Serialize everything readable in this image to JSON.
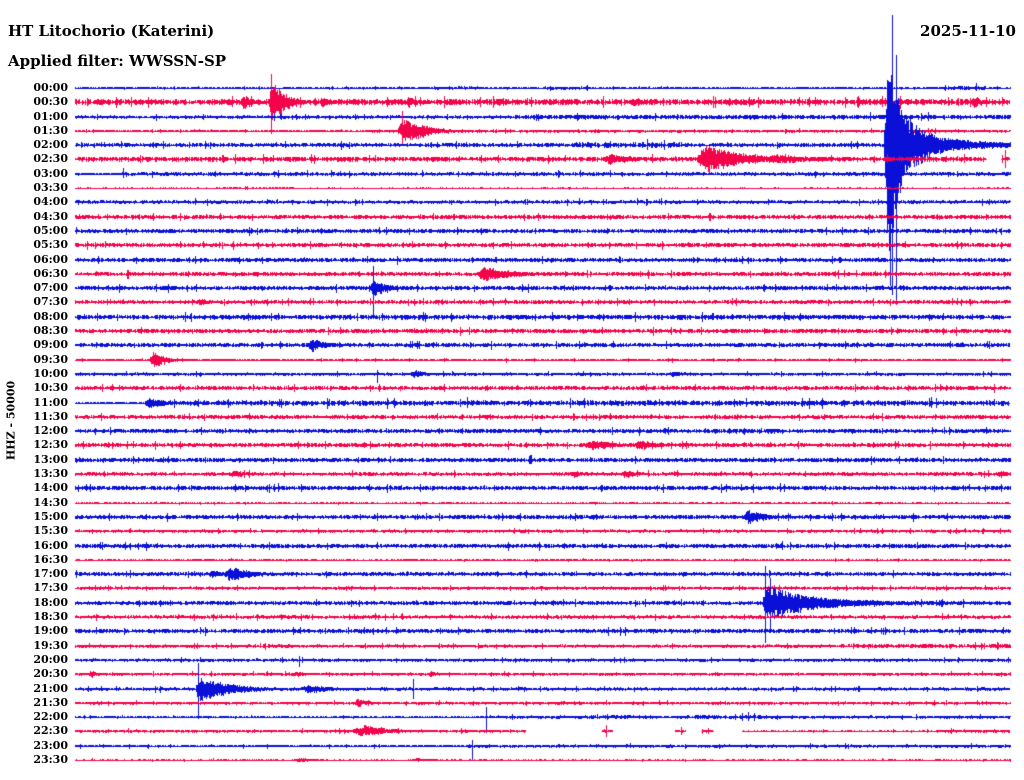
{
  "header": {
    "station_title": "HT Litochorio (Katerini)",
    "filter_label": "Applied filter: WWSSN-SP",
    "date": "2025-11-10"
  },
  "axis": {
    "channel_label": "HHZ - 50000"
  },
  "colors": {
    "blue": "#0a10d8",
    "red": "#f5034a",
    "text": "#000000",
    "background": "#ffffff"
  },
  "chart_data": {
    "type": "helicorder",
    "title": "HT Litochorio (Katerini)",
    "subtitle": "Applied filter: WWSSN-SP",
    "date": "2025-11-10",
    "channel": "HHZ - 50000",
    "minutes_per_row": 30,
    "rows": [
      {
        "label": "00:00",
        "color": "blue",
        "noise": 0.9,
        "segments": [
          {
            "f": 11.5,
            "to": 13,
            "amp": 1.5
          },
          {
            "f": 15,
            "to": 16.5,
            "amp": 1.5
          },
          {
            "f": 27.8,
            "to": 29.2,
            "amp": 2
          }
        ],
        "spikes": [
          {
            "t": 28.9,
            "up": 5,
            "dn": 3
          }
        ]
      },
      {
        "label": "00:30",
        "color": "red",
        "noise": 2.8,
        "events": [
          {
            "t": 5.4,
            "amp": 8,
            "a": 0.12,
            "d": 0.3
          },
          {
            "t": 6.3,
            "amp": 24,
            "a": 0.1,
            "d": 0.45
          },
          {
            "t": 7.9,
            "amp": 5,
            "a": 0.1,
            "d": 0.5
          },
          {
            "t": 10.7,
            "amp": 6,
            "a": 0.12,
            "d": 0.35
          },
          {
            "t": 13.6,
            "amp": 5,
            "a": 0.12,
            "d": 0.35
          },
          {
            "t": 17.9,
            "amp": 4,
            "a": 0.2,
            "d": 0.5
          },
          {
            "t": 28.85,
            "amp": 6,
            "a": 0.15,
            "d": 0.35
          }
        ],
        "spikes": [
          {
            "t": 6.3,
            "up": 28,
            "dn": 32
          }
        ]
      },
      {
        "label": "01:00",
        "color": "blue",
        "noise": 1.5,
        "segments": [
          {
            "f": 14,
            "to": 30,
            "amp": 2.1
          }
        ],
        "spikes": [
          {
            "t": 6.4,
            "up": 4,
            "dn": 4
          }
        ]
      },
      {
        "label": "01:30",
        "color": "red",
        "noise": 1.3,
        "segments": [
          {
            "f": 0,
            "to": 9.5,
            "amp": 1.0
          }
        ],
        "events": [
          {
            "t": 10.55,
            "amp": 13,
            "a": 0.25,
            "d": 0.8
          }
        ],
        "spikes": [
          {
            "t": 10.5,
            "up": 20,
            "dn": 15
          }
        ]
      },
      {
        "label": "02:00",
        "color": "blue",
        "noise": 1.9,
        "segments": [
          {
            "f": 16,
            "to": 19.5,
            "amp": 2.6
          }
        ],
        "events": [
          {
            "t": 26.15,
            "amp": 130,
            "a": 0.22,
            "d": 0.28,
            "asym": 1.2
          },
          {
            "t": 26.3,
            "amp": 45,
            "a": 0.3,
            "d": 0.9,
            "asym": 1.1
          },
          {
            "t": 26.5,
            "amp": 12,
            "a": 0.2,
            "d": 2.5
          }
        ],
        "spikes": [
          {
            "t": 26.22,
            "up": 130,
            "dn": 150
          },
          {
            "t": 26.35,
            "up": 90,
            "dn": 155
          },
          {
            "t": 26.05,
            "up": 60,
            "dn": 70
          }
        ]
      },
      {
        "label": "02:30",
        "color": "red",
        "noise": 2.2,
        "events": [
          {
            "t": 17.15,
            "amp": 6,
            "a": 0.3,
            "d": 0.9
          },
          {
            "t": 20.2,
            "amp": 15,
            "a": 0.3,
            "d": 1.3
          },
          {
            "t": 22.5,
            "amp": 5,
            "a": 0.5,
            "d": 1.5
          }
        ],
        "spikes": [
          {
            "t": 29.85,
            "up": 9,
            "dn": 9
          }
        ],
        "gaps": [
          [
            29.25,
            29.72
          ]
        ]
      },
      {
        "label": "03:00",
        "color": "blue",
        "noise": 1.7,
        "segments": [
          {
            "f": 0,
            "to": 1.5,
            "amp": 1.0
          }
        ],
        "spikes": [
          {
            "t": 1.55,
            "up": 6,
            "dn": 4
          },
          {
            "t": 6.5,
            "up": 4,
            "dn": 4
          }
        ]
      },
      {
        "label": "03:30",
        "color": "red",
        "noise": 0.55,
        "den": 0.75,
        "segments": [
          {
            "f": 4.5,
            "to": 7,
            "amp": 0.9
          }
        ]
      },
      {
        "label": "04:00",
        "color": "blue",
        "noise": 1.6
      },
      {
        "label": "04:30",
        "color": "red",
        "noise": 1.9
      },
      {
        "label": "05:00",
        "color": "blue",
        "noise": 1.9
      },
      {
        "label": "05:30",
        "color": "red",
        "noise": 1.9
      },
      {
        "label": "06:00",
        "color": "blue",
        "noise": 1.9,
        "events": [
          {
            "t": 7.3,
            "amp": 3,
            "a": 0.2,
            "d": 0.4
          }
        ]
      },
      {
        "label": "06:30",
        "color": "red",
        "noise": 1.9,
        "events": [
          {
            "t": 13.05,
            "amp": 8,
            "a": 0.15,
            "d": 1.1
          }
        ]
      },
      {
        "label": "07:00",
        "color": "blue",
        "noise": 1.9,
        "events": [
          {
            "t": 2.9,
            "amp": 3,
            "a": 0.2,
            "d": 0.4
          },
          {
            "t": 9.55,
            "amp": 11,
            "a": 0.1,
            "d": 0.45
          }
        ],
        "spikes": [
          {
            "t": 9.55,
            "up": 22,
            "dn": 27
          }
        ]
      },
      {
        "label": "07:30",
        "color": "red",
        "noise": 1.8,
        "events": [
          {
            "t": 4.0,
            "amp": 4,
            "a": 0.15,
            "d": 0.4
          }
        ]
      },
      {
        "label": "08:00",
        "color": "blue",
        "noise": 2.2
      },
      {
        "label": "08:30",
        "color": "red",
        "noise": 2.0
      },
      {
        "label": "09:00",
        "color": "blue",
        "noise": 1.9,
        "events": [
          {
            "t": 7.6,
            "amp": 7,
            "a": 0.2,
            "d": 0.5
          }
        ]
      },
      {
        "label": "09:30",
        "color": "red",
        "noise": 1.1,
        "events": [
          {
            "t": 2.5,
            "amp": 8,
            "a": 0.15,
            "d": 0.5
          }
        ]
      },
      {
        "label": "10:00",
        "color": "blue",
        "noise": 1.4,
        "events": [
          {
            "t": 10.9,
            "amp": 4,
            "a": 0.3,
            "d": 0.5
          },
          {
            "t": 19.2,
            "amp": 3,
            "a": 0.3,
            "d": 0.6
          }
        ],
        "spikes": [
          {
            "t": 9.7,
            "up": 4,
            "dn": 9
          }
        ]
      },
      {
        "label": "10:30",
        "color": "red",
        "noise": 1.9
      },
      {
        "label": "11:00",
        "color": "blue",
        "noise": 2.4,
        "segments": [
          {
            "f": 0,
            "to": 2.25,
            "amp": 0.9
          }
        ],
        "events": [
          {
            "t": 2.35,
            "amp": 6,
            "a": 0.1,
            "d": 0.6
          }
        ]
      },
      {
        "label": "11:30",
        "color": "red",
        "noise": 1.8
      },
      {
        "label": "12:00",
        "color": "blue",
        "noise": 1.9,
        "segments": [
          {
            "f": 20,
            "to": 23,
            "amp": 2.4
          }
        ]
      },
      {
        "label": "12:30",
        "color": "red",
        "noise": 1.9,
        "events": [
          {
            "t": 16.6,
            "amp": 5,
            "a": 0.4,
            "d": 1.0
          },
          {
            "t": 18.1,
            "amp": 5,
            "a": 0.3,
            "d": 0.8
          }
        ]
      },
      {
        "label": "13:00",
        "color": "blue",
        "noise": 2.0
      },
      {
        "label": "13:30",
        "color": "red",
        "noise": 1.7,
        "events": [
          {
            "t": 5.1,
            "amp": 4,
            "a": 0.2,
            "d": 0.5
          },
          {
            "t": 16.0,
            "amp": 4,
            "a": 0.2,
            "d": 0.5
          },
          {
            "t": 17.7,
            "amp": 4,
            "a": 0.2,
            "d": 0.4
          },
          {
            "t": 29.7,
            "amp": 4,
            "a": 0.2,
            "d": 0.3
          }
        ]
      },
      {
        "label": "14:00",
        "color": "blue",
        "noise": 2.0
      },
      {
        "label": "14:30",
        "color": "red",
        "noise": 0.8,
        "den": 0.8
      },
      {
        "label": "15:00",
        "color": "blue",
        "noise": 1.9,
        "events": [
          {
            "t": 21.6,
            "amp": 8,
            "a": 0.2,
            "d": 0.6
          }
        ]
      },
      {
        "label": "15:30",
        "color": "red",
        "noise": 1.4
      },
      {
        "label": "16:00",
        "color": "blue",
        "noise": 2.0
      },
      {
        "label": "16:30",
        "color": "red",
        "noise": 0.8,
        "den": 0.85
      },
      {
        "label": "17:00",
        "color": "blue",
        "noise": 1.8,
        "events": [
          {
            "t": 4.4,
            "amp": 4,
            "a": 0.2,
            "d": 0.4
          },
          {
            "t": 4.95,
            "amp": 8,
            "a": 0.2,
            "d": 0.8
          }
        ]
      },
      {
        "label": "17:30",
        "color": "red",
        "noise": 1.4
      },
      {
        "label": "18:00",
        "color": "blue",
        "noise": 1.9,
        "events": [
          {
            "t": 22.15,
            "amp": 19,
            "a": 0.12,
            "d": 1.5
          },
          {
            "t": 23.5,
            "amp": 6,
            "a": 0.5,
            "d": 3.0
          }
        ],
        "spikes": [
          {
            "t": 22.15,
            "up": 37,
            "dn": 40
          },
          {
            "t": 22.3,
            "up": 25,
            "dn": 30
          }
        ]
      },
      {
        "label": "18:30",
        "color": "red",
        "noise": 1.6
      },
      {
        "label": "19:00",
        "color": "blue",
        "noise": 1.9
      },
      {
        "label": "19:30",
        "color": "red",
        "noise": 1.4,
        "segments": [
          {
            "f": 5.5,
            "to": 7,
            "amp": 1.8
          },
          {
            "f": 24.5,
            "to": 30,
            "amp": 2.0
          }
        ]
      },
      {
        "label": "20:00",
        "color": "blue",
        "noise": 1.4,
        "spikes": [
          {
            "t": 7.2,
            "up": 4,
            "dn": 7
          }
        ]
      },
      {
        "label": "20:30",
        "color": "red",
        "noise": 1.3,
        "events": [
          {
            "t": 0.5,
            "amp": 4,
            "a": 0.1,
            "d": 0.3
          },
          {
            "t": 7.1,
            "amp": 3,
            "a": 0.2,
            "d": 0.4
          },
          {
            "t": 11.4,
            "amp": 3,
            "a": 0.2,
            "d": 0.4
          }
        ]
      },
      {
        "label": "21:00",
        "color": "blue",
        "noise": 1.5,
        "events": [
          {
            "t": 3.95,
            "amp": 13,
            "a": 0.1,
            "d": 1.1
          },
          {
            "t": 7.45,
            "amp": 5,
            "a": 0.25,
            "d": 0.8
          }
        ],
        "spikes": [
          {
            "t": 3.95,
            "up": 26,
            "dn": 30
          },
          {
            "t": 10.85,
            "up": 10,
            "dn": 10
          }
        ]
      },
      {
        "label": "21:30",
        "color": "red",
        "noise": 1.3,
        "events": [
          {
            "t": 9.05,
            "amp": 5,
            "a": 0.12,
            "d": 0.4
          }
        ]
      },
      {
        "label": "22:00",
        "color": "blue",
        "noise": 0.8,
        "segments": [
          {
            "f": 13.5,
            "to": 16.5,
            "amp": 1.4
          },
          {
            "f": 16.5,
            "to": 18.3,
            "amp": 2.0
          },
          {
            "f": 18.3,
            "to": 19.8,
            "amp": 1.4
          },
          {
            "f": 19.8,
            "to": 22,
            "amp": 2.0
          },
          {
            "f": 22,
            "to": 30,
            "amp": 1.4
          }
        ],
        "spikes": [
          {
            "t": 13.2,
            "up": 10,
            "dn": 16
          }
        ]
      },
      {
        "label": "22:30",
        "color": "red",
        "noise": 1.3,
        "segments": [
          {
            "f": 21.4,
            "to": 27.6,
            "amp": 0.9,
            "den": 0.55
          },
          {
            "f": 27.6,
            "to": 30,
            "amp": 1.5
          }
        ],
        "events": [
          {
            "t": 9.3,
            "amp": 6,
            "a": 0.6,
            "d": 1.0
          }
        ],
        "spikes": [
          {
            "t": 17.05,
            "up": 6,
            "dn": 6
          },
          {
            "t": 19.45,
            "up": 4,
            "dn": 4
          },
          {
            "t": 20.3,
            "up": 3,
            "dn": 3
          }
        ],
        "gaps": [
          [
            14.45,
            16.9
          ],
          [
            17.25,
            19.25
          ],
          [
            19.6,
            20.1
          ],
          [
            20.5,
            21.4
          ]
        ]
      },
      {
        "label": "23:00",
        "color": "blue",
        "noise": 1.4,
        "segments": [
          {
            "f": 0,
            "to": 12.6,
            "amp": 1.1
          }
        ],
        "spikes": [
          {
            "t": 12.75,
            "up": 6,
            "dn": 13
          }
        ]
      },
      {
        "label": "23:30",
        "color": "red",
        "noise": 0.7,
        "den": 0.65,
        "events": [
          {
            "t": 7.2,
            "amp": 2.5,
            "a": 0.3,
            "d": 0.6
          },
          {
            "t": 11,
            "amp": 2,
            "a": 0.3,
            "d": 0.5
          }
        ]
      }
    ]
  }
}
